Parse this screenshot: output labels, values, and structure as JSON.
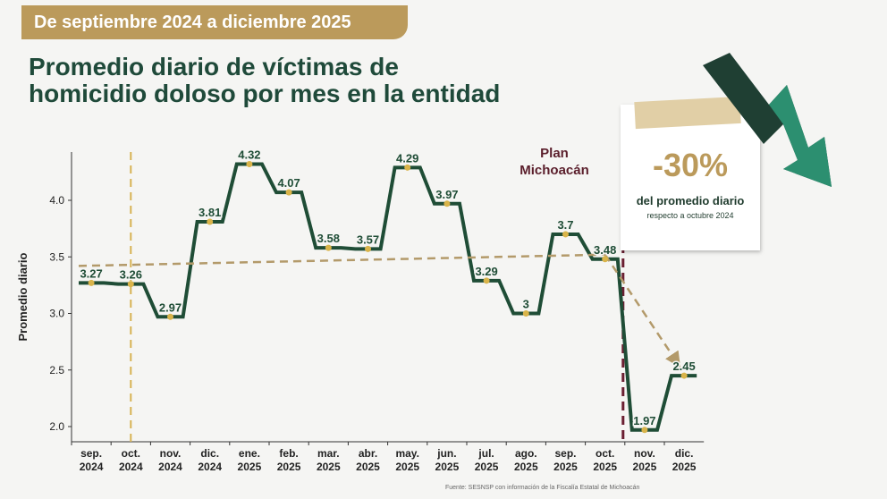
{
  "header": {
    "period_label": "De septiembre 2024 a diciembre 2025",
    "title_line1": "Promedio diario de víctimas de",
    "title_line2": "homicidio doloso por mes en la entidad"
  },
  "plan": {
    "label_line1": "Plan",
    "label_line2": "Michoacán"
  },
  "note": {
    "percent": "-30%",
    "main": "del promedio diario",
    "sub": "respecto a octubre 2024"
  },
  "source": "Fuente: SESNSP con información de la Fiscalía Estatal de Michoacán",
  "colors": {
    "step_line": "#1f4d36",
    "point": "#d9b44a",
    "accent_gold": "#bb9a5b",
    "trend": "#b39a6a",
    "plan_line": "#6b1f32",
    "ref_line": "#d8b253",
    "title": "#1f4a3a",
    "arrow_dark": "#1f3f33",
    "arrow_light": "#2c8f70"
  },
  "decor_icons": [
    "zigzag-down-arrow-icon"
  ],
  "chart_data": {
    "type": "line",
    "step": true,
    "ylabel": "Promedio diario",
    "xlabel": "",
    "ylim": [
      1.8,
      4.4
    ],
    "yticks": [
      2.0,
      2.5,
      3.0,
      3.5,
      4.0
    ],
    "ytick_labels": [
      "2.0",
      "2.5",
      "3.0",
      "3.5",
      "4.0"
    ],
    "grid": false,
    "categories": [
      [
        "sep.",
        "2024"
      ],
      [
        "oct.",
        "2024"
      ],
      [
        "nov.",
        "2024"
      ],
      [
        "dic.",
        "2024"
      ],
      [
        "ene.",
        "2025"
      ],
      [
        "feb.",
        "2025"
      ],
      [
        "mar.",
        "2025"
      ],
      [
        "abr.",
        "2025"
      ],
      [
        "may.",
        "2025"
      ],
      [
        "jun.",
        "2025"
      ],
      [
        "jul.",
        "2025"
      ],
      [
        "ago.",
        "2025"
      ],
      [
        "sep.",
        "2025"
      ],
      [
        "oct.",
        "2025"
      ],
      [
        "nov.",
        "2025"
      ],
      [
        "dic.",
        "2025"
      ]
    ],
    "values": [
      3.27,
      3.26,
      2.97,
      3.81,
      4.32,
      4.07,
      3.58,
      3.57,
      4.29,
      3.97,
      3.29,
      3,
      3.7,
      3.48,
      1.97,
      2.45
    ],
    "data_labels": [
      "3.27",
      "3.26",
      "2.97",
      "3.81",
      "4.32",
      "4.07",
      "3.58",
      "3.57",
      "4.29",
      "3.97",
      "3.29",
      "3",
      "3.7",
      "3.48",
      "1.97",
      "2.45"
    ],
    "reference_line_category_index": 1,
    "plan_line_after_category_index": 13,
    "trend_line": {
      "from": [
        0,
        3.42
      ],
      "to": [
        13,
        3.52
      ]
    },
    "trend_drop": {
      "from": [
        13,
        3.52
      ],
      "to": [
        15,
        2.45
      ]
    }
  }
}
